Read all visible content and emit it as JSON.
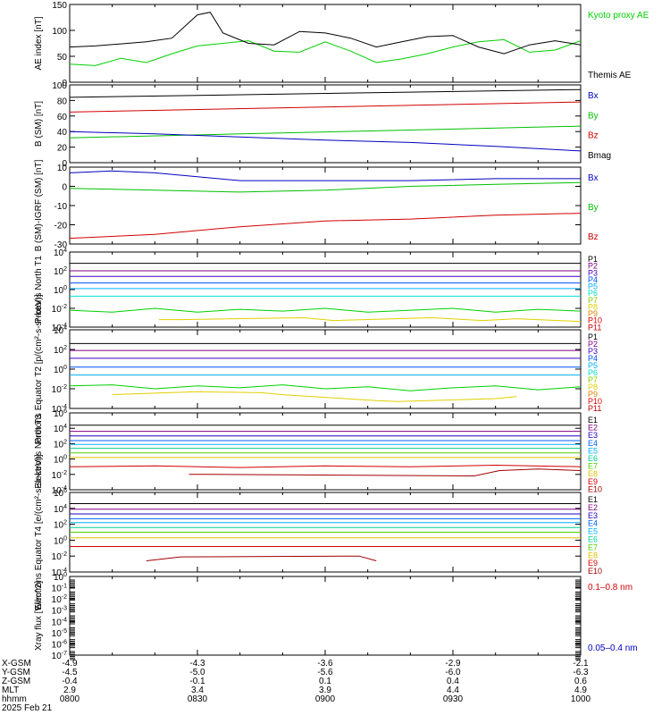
{
  "x_axis": {
    "times": [
      "0800",
      "0830",
      "0900",
      "0930",
      "1000"
    ],
    "date": "2025 Feb 21",
    "rows": [
      {
        "label": "X-GSM",
        "values": [
          "-4.9",
          "-4.3",
          "-3.6",
          "-2.9",
          "-2.1"
        ]
      },
      {
        "label": "Y-GSM",
        "values": [
          "-4.5",
          "-5.0",
          "-5.6",
          "-6.0",
          "-6.3"
        ]
      },
      {
        "label": "Z-GSM",
        "values": [
          "-0.4",
          "-0.1",
          "0.1",
          "0.4",
          "0.6"
        ]
      },
      {
        "label": "MLT",
        "values": [
          "2.9",
          "3.4",
          "3.9",
          "4.4",
          "4.9"
        ]
      },
      {
        "label": "hhmm",
        "values": [
          "0800",
          "0830",
          "0900",
          "0930",
          "1000"
        ]
      }
    ]
  },
  "chart_data": [
    {
      "type": "line",
      "ylabel": "AE index [nT]",
      "ylim": [
        0,
        150
      ],
      "yticks": [
        "0",
        "50",
        "100",
        "150"
      ],
      "series": [
        {
          "name": "Kyoto proxy AE",
          "color": "#00d000",
          "x": [
            0,
            6,
            12,
            18,
            24,
            30,
            36,
            42,
            48,
            54,
            60,
            66,
            72,
            78,
            84,
            90,
            96,
            102,
            108,
            114,
            120
          ],
          "values": [
            35,
            32,
            46,
            38,
            55,
            70,
            75,
            80,
            60,
            58,
            78,
            60,
            38,
            45,
            55,
            68,
            78,
            82,
            58,
            62,
            80
          ]
        },
        {
          "name": "Themis AE",
          "color": "#000000",
          "x": [
            0,
            6,
            12,
            18,
            24,
            30,
            33,
            36,
            42,
            48,
            54,
            60,
            66,
            72,
            78,
            84,
            90,
            96,
            102,
            108,
            114,
            120
          ],
          "values": [
            68,
            70,
            74,
            78,
            85,
            130,
            135,
            95,
            75,
            72,
            98,
            95,
            85,
            68,
            78,
            88,
            90,
            68,
            55,
            72,
            80,
            72
          ]
        }
      ],
      "legend": [
        {
          "text": "Kyoto proxy AE",
          "color": "#00d000"
        },
        {
          "text": "Themis AE",
          "color": "#000000"
        }
      ]
    },
    {
      "type": "line",
      "ylabel": "B (SM) [nT]",
      "ylim": [
        0,
        100
      ],
      "yticks": [
        "0",
        "20",
        "40",
        "60",
        "80",
        "100"
      ],
      "series": [
        {
          "name": "Bmag",
          "color": "#000000",
          "x": [
            0,
            120
          ],
          "values": [
            84,
            94
          ]
        },
        {
          "name": "Bz",
          "color": "#d00000",
          "x": [
            0,
            120
          ],
          "values": [
            65,
            78
          ]
        },
        {
          "name": "By",
          "color": "#00c000",
          "x": [
            0,
            120
          ],
          "values": [
            32,
            47
          ]
        },
        {
          "name": "Bx",
          "color": "#0000c0",
          "x": [
            0,
            20,
            40,
            60,
            80,
            100,
            120
          ],
          "values": [
            40,
            37,
            33,
            29,
            26,
            21,
            15
          ]
        }
      ],
      "legend": [
        {
          "text": "Bx",
          "color": "#0000c0"
        },
        {
          "text": "By",
          "color": "#00c000"
        },
        {
          "text": "Bz",
          "color": "#d00000"
        },
        {
          "text": "Bmag",
          "color": "#000000"
        }
      ]
    },
    {
      "type": "line",
      "ylabel": "B (SM)-IGRF (SM) [nT]",
      "ylim": [
        -30,
        10
      ],
      "yticks": [
        "-30",
        "-20",
        "-10",
        "0",
        "10"
      ],
      "series": [
        {
          "name": "Bx",
          "color": "#0000c0",
          "x": [
            0,
            10,
            20,
            30,
            40,
            60,
            80,
            100,
            120
          ],
          "values": [
            7,
            8,
            7,
            5,
            3,
            3,
            3,
            4,
            4
          ]
        },
        {
          "name": "By",
          "color": "#00c000",
          "x": [
            0,
            20,
            40,
            60,
            80,
            100,
            120
          ],
          "values": [
            -1,
            -2,
            -3,
            -2,
            0,
            1,
            2
          ]
        },
        {
          "name": "Bz",
          "color": "#d00000",
          "x": [
            0,
            20,
            40,
            60,
            80,
            100,
            120
          ],
          "values": [
            -27,
            -25,
            -21,
            -18,
            -17,
            -15,
            -14
          ]
        }
      ],
      "legend": [
        {
          "text": "Bx",
          "color": "#0000c0"
        },
        {
          "text": "By",
          "color": "#00c000"
        },
        {
          "text": "Bz",
          "color": "#d00000"
        }
      ]
    },
    {
      "type": "line",
      "log": true,
      "ylabel": "Protons North T1",
      "ylim": [
        -4,
        4
      ],
      "yticks": [
        "10^-4",
        "10^-2",
        "10^0",
        "10^2",
        "10^4"
      ],
      "series": [
        {
          "name": "P1",
          "color": "#000000",
          "x": [
            0,
            120
          ],
          "values": [
            2.8,
            2.8
          ]
        },
        {
          "name": "P2",
          "color": "#800080",
          "x": [
            0,
            120
          ],
          "values": [
            2.0,
            2.0
          ]
        },
        {
          "name": "P3",
          "color": "#4000c0",
          "x": [
            0,
            120
          ],
          "values": [
            1.4,
            1.4
          ]
        },
        {
          "name": "P4",
          "color": "#0050ff",
          "x": [
            0,
            120
          ],
          "values": [
            0.7,
            0.7
          ]
        },
        {
          "name": "P5",
          "color": "#00b0ff",
          "x": [
            0,
            120
          ],
          "values": [
            0.1,
            0.1
          ]
        },
        {
          "name": "P6",
          "color": "#00e0d0",
          "x": [
            0,
            120
          ],
          "values": [
            -0.7,
            -0.7
          ]
        },
        {
          "name": "P7",
          "color": "#00d000",
          "x": [
            0,
            10,
            20,
            30,
            40,
            50,
            60,
            70,
            80,
            90,
            100,
            110,
            120
          ],
          "values": [
            -2.2,
            -2.4,
            -2.0,
            -2.4,
            -2.1,
            -2.3,
            -2.0,
            -2.4,
            -2.2,
            -2.0,
            -2.4,
            -2.1,
            -2.3
          ]
        },
        {
          "name": "P8",
          "color": "#e0d000",
          "x": [
            21,
            26,
            55,
            62,
            85,
            97,
            105,
            120
          ],
          "values": [
            -3.2,
            -3.2,
            -3.0,
            -3.3,
            -3.0,
            -3.3,
            -3.1,
            -3.4
          ]
        }
      ],
      "legend": [
        {
          "text": "P1",
          "color": "#000000"
        },
        {
          "text": "P2",
          "color": "#800080"
        },
        {
          "text": "P3",
          "color": "#4000c0"
        },
        {
          "text": "P4",
          "color": "#0050ff"
        },
        {
          "text": "P5",
          "color": "#00b0ff"
        },
        {
          "text": "P6",
          "color": "#00e0d0"
        },
        {
          "text": "P7",
          "color": "#80d000"
        },
        {
          "text": "P8",
          "color": "#e0d000"
        },
        {
          "text": "P9",
          "color": "#e08000"
        },
        {
          "text": "P10",
          "color": "#e00000"
        },
        {
          "text": "P11",
          "color": "#c00000"
        }
      ]
    },
    {
      "type": "line",
      "log": true,
      "ylabel": "Protons Equator T2 [p/(cm²-s-sr-keV)]",
      "ylim": [
        -4,
        4
      ],
      "yticks": [
        "10^-4",
        "10^-2",
        "10^0",
        "10^2",
        "10^4"
      ],
      "series": [
        {
          "name": "P1",
          "color": "#000000",
          "x": [
            0,
            120
          ],
          "values": [
            2.6,
            2.6
          ]
        },
        {
          "name": "P2",
          "color": "#800080",
          "x": [
            0,
            120
          ],
          "values": [
            1.9,
            1.9
          ]
        },
        {
          "name": "P3",
          "color": "#4000c0",
          "x": [
            0,
            120
          ],
          "values": [
            1.1,
            1.1
          ]
        },
        {
          "name": "P4",
          "color": "#0050ff",
          "x": [
            0,
            120
          ],
          "values": [
            0.2,
            0.2
          ]
        },
        {
          "name": "P5",
          "color": "#00b0ff",
          "x": [
            0,
            120
          ],
          "values": [
            -0.6,
            -0.6
          ]
        },
        {
          "name": "P6",
          "color": "#00d000",
          "x": [
            0,
            10,
            20,
            30,
            40,
            50,
            60,
            70,
            80,
            90,
            100,
            110,
            120
          ],
          "values": [
            -1.7,
            -1.6,
            -2.0,
            -1.7,
            -1.9,
            -1.6,
            -2.0,
            -1.8,
            -2.2,
            -1.9,
            -1.7,
            -2.1,
            -1.8
          ]
        },
        {
          "name": "P7",
          "color": "#e0d000",
          "x": [
            10,
            30,
            45,
            50,
            72,
            77,
            100,
            105
          ],
          "values": [
            -2.6,
            -2.3,
            -2.4,
            -2.6,
            -3.2,
            -3.3,
            -3.0,
            -2.8
          ]
        }
      ],
      "legend": [
        {
          "text": "P1",
          "color": "#000000"
        },
        {
          "text": "P2",
          "color": "#800080"
        },
        {
          "text": "P3",
          "color": "#4000c0"
        },
        {
          "text": "P4",
          "color": "#0050ff"
        },
        {
          "text": "P5",
          "color": "#00b0ff"
        },
        {
          "text": "P6",
          "color": "#00e0d0"
        },
        {
          "text": "P7",
          "color": "#80d000"
        },
        {
          "text": "P8",
          "color": "#e0d000"
        },
        {
          "text": "P9",
          "color": "#e08000"
        },
        {
          "text": "P10",
          "color": "#e00000"
        },
        {
          "text": "P11",
          "color": "#c00000"
        }
      ]
    },
    {
      "type": "line",
      "log": true,
      "ylabel": "Electrons North T3",
      "ylim": [
        -4,
        6
      ],
      "yticks": [
        "10^-4",
        "10^-2",
        "10^0",
        "10^2",
        "10^4",
        "10^6"
      ],
      "series": [
        {
          "name": "E1",
          "color": "#000000",
          "x": [
            0,
            120
          ],
          "values": [
            4.4,
            4.4
          ]
        },
        {
          "name": "E2",
          "color": "#800080",
          "x": [
            0,
            120
          ],
          "values": [
            3.6,
            3.6
          ]
        },
        {
          "name": "E3",
          "color": "#2000c0",
          "x": [
            0,
            120
          ],
          "values": [
            3.0,
            3.0
          ]
        },
        {
          "name": "E4",
          "color": "#0060ff",
          "x": [
            0,
            120
          ],
          "values": [
            2.4,
            2.4
          ]
        },
        {
          "name": "E5",
          "color": "#00b0ff",
          "x": [
            0,
            120
          ],
          "values": [
            1.9,
            1.9
          ]
        },
        {
          "name": "E6",
          "color": "#00d090",
          "x": [
            0,
            120
          ],
          "values": [
            1.4,
            1.4
          ]
        },
        {
          "name": "E7",
          "color": "#50d000",
          "x": [
            0,
            120
          ],
          "values": [
            0.8,
            0.8
          ]
        },
        {
          "name": "E8",
          "color": "#e0c000",
          "x": [
            0,
            120
          ],
          "values": [
            0.2,
            0.2
          ]
        },
        {
          "name": "E9",
          "color": "#d00000",
          "x": [
            0,
            20,
            40,
            60,
            80,
            100,
            120
          ],
          "values": [
            -1.0,
            -0.9,
            -1.1,
            -0.9,
            -1.0,
            -0.8,
            -1.0
          ]
        },
        {
          "name": "E10",
          "color": "#a00000",
          "x": [
            28,
            33,
            95,
            101,
            110,
            120
          ],
          "values": [
            -2.0,
            -2.0,
            -2.2,
            -1.5,
            -1.3,
            -1.5
          ]
        }
      ],
      "legend": [
        {
          "text": "E1",
          "color": "#000000"
        },
        {
          "text": "E2",
          "color": "#800080"
        },
        {
          "text": "E3",
          "color": "#2000c0"
        },
        {
          "text": "E4",
          "color": "#0060ff"
        },
        {
          "text": "E5",
          "color": "#00b0ff"
        },
        {
          "text": "E6",
          "color": "#00d090"
        },
        {
          "text": "E7",
          "color": "#50d000"
        },
        {
          "text": "E8",
          "color": "#e0c000"
        },
        {
          "text": "E9",
          "color": "#d00000"
        },
        {
          "text": "E10",
          "color": "#a00000"
        }
      ]
    },
    {
      "type": "line",
      "log": true,
      "ylabel": "Electrons Equator T4 [e/(cm²-s-sr-keV)]",
      "ylim": [
        -4,
        6
      ],
      "yticks": [
        "10^-4",
        "10^-2",
        "10^0",
        "10^2",
        "10^4",
        "10^6"
      ],
      "series": [
        {
          "name": "E1",
          "color": "#000000",
          "x": [
            0,
            120
          ],
          "values": [
            4.6,
            4.6
          ]
        },
        {
          "name": "E2",
          "color": "#800080",
          "x": [
            0,
            120
          ],
          "values": [
            3.9,
            3.9
          ]
        },
        {
          "name": "E3",
          "color": "#2000c0",
          "x": [
            0,
            120
          ],
          "values": [
            3.3,
            3.3
          ]
        },
        {
          "name": "E4",
          "color": "#0060ff",
          "x": [
            0,
            120
          ],
          "values": [
            2.7,
            2.7
          ]
        },
        {
          "name": "E5",
          "color": "#00b0ff",
          "x": [
            0,
            120
          ],
          "values": [
            2.2,
            2.2
          ]
        },
        {
          "name": "E6",
          "color": "#00d090",
          "x": [
            0,
            120
          ],
          "values": [
            1.6,
            1.6
          ]
        },
        {
          "name": "E7",
          "color": "#50d000",
          "x": [
            0,
            120
          ],
          "values": [
            1.0,
            1.0
          ]
        },
        {
          "name": "E8",
          "color": "#e0c000",
          "x": [
            0,
            120
          ],
          "values": [
            0.3,
            0.3
          ]
        },
        {
          "name": "E9",
          "color": "#d00000",
          "x": [
            0,
            120
          ],
          "values": [
            -0.8,
            -0.8
          ]
        },
        {
          "name": "E10",
          "color": "#a00000",
          "x": [
            18,
            26,
            68,
            72
          ],
          "values": [
            -2.6,
            -2.1,
            -2.0,
            -2.6
          ]
        }
      ],
      "legend": [
        {
          "text": "E1",
          "color": "#000000"
        },
        {
          "text": "E2",
          "color": "#800080"
        },
        {
          "text": "E3",
          "color": "#2000c0"
        },
        {
          "text": "E4",
          "color": "#0060ff"
        },
        {
          "text": "E5",
          "color": "#00b0ff"
        },
        {
          "text": "E6",
          "color": "#00d090"
        },
        {
          "text": "E7",
          "color": "#50d000"
        },
        {
          "text": "E8",
          "color": "#e0c000"
        },
        {
          "text": "E9",
          "color": "#d00000"
        },
        {
          "text": "E10",
          "color": "#a00000"
        }
      ]
    },
    {
      "type": "line",
      "log": true,
      "ylabel": "Xray flux [W/m^2]",
      "ylim": [
        -7,
        0
      ],
      "yticks": [
        "10^-7",
        "10^-6",
        "10^-5",
        "10^-4",
        "10^-3",
        "10^-2",
        "10^-1",
        "10^0"
      ],
      "series": [],
      "legend": [
        {
          "text": "0.1–0.8 nm",
          "color": "#d00000"
        },
        {
          "text": "0.05–0.4 nm",
          "color": "#0000c0"
        }
      ]
    }
  ]
}
